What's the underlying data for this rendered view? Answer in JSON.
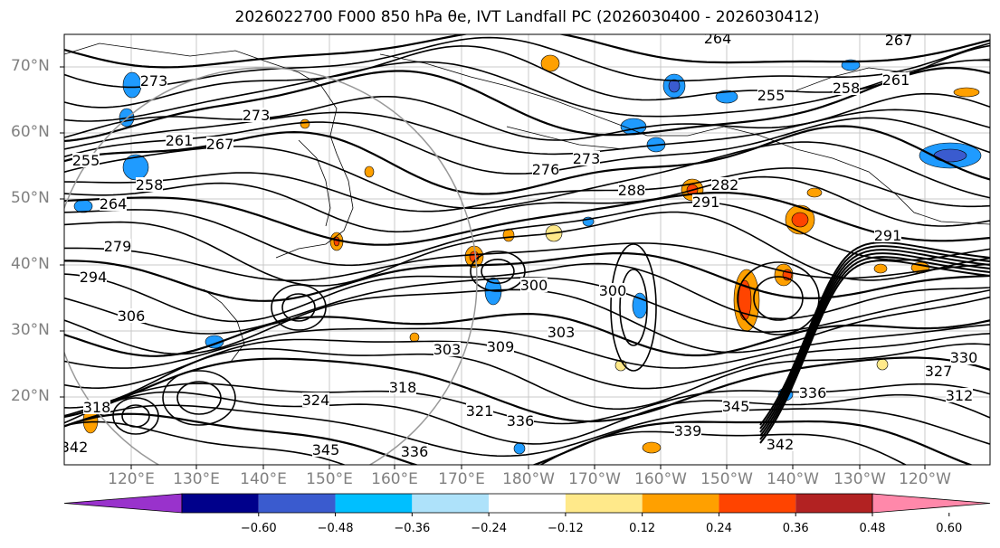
{
  "title": "2026022700 F000 850 hPa θe, IVT Landfall PC (2026030400 - 2026030412)",
  "map": {
    "lat_labels": [
      "70°N",
      "60°N",
      "50°N",
      "40°N",
      "30°N",
      "20°N"
    ],
    "lon_labels": [
      "120°E",
      "130°E",
      "140°E",
      "150°E",
      "160°E",
      "170°E",
      "180°W",
      "170°W",
      "160°W",
      "150°W",
      "140°W",
      "130°W",
      "120°W"
    ],
    "contour_labels": [
      "264",
      "267",
      "261",
      "258",
      "255",
      "273",
      "273",
      "267",
      "261",
      "255",
      "258",
      "264",
      "276",
      "273",
      "282",
      "291",
      "291",
      "288",
      "279",
      "294",
      "300",
      "306",
      "303",
      "309",
      "303",
      "300",
      "318",
      "324",
      "321",
      "336",
      "339",
      "345",
      "336",
      "330",
      "327",
      "312",
      "318",
      "342",
      "342",
      "345",
      "336"
    ],
    "colors": {
      "neg_strong": "#1f9bff",
      "neg_light": "#aeddff",
      "pos_light": "#ffe98a",
      "pos_mid": "#ffa000",
      "pos_strong": "#ff4400"
    }
  },
  "colorbar": {
    "colors": [
      "#9932cc",
      "#00008b",
      "#3a5bcf",
      "#00bfff",
      "#aee2fa",
      "#ffffff",
      "#ffe98a",
      "#ffa000",
      "#ff4400",
      "#b22222",
      "#ff88aa"
    ],
    "ticks": [
      "−0.60",
      "−0.48",
      "−0.36",
      "−0.24",
      "−0.12",
      "0.12",
      "0.24",
      "0.36",
      "0.48",
      "0.60"
    ]
  }
}
